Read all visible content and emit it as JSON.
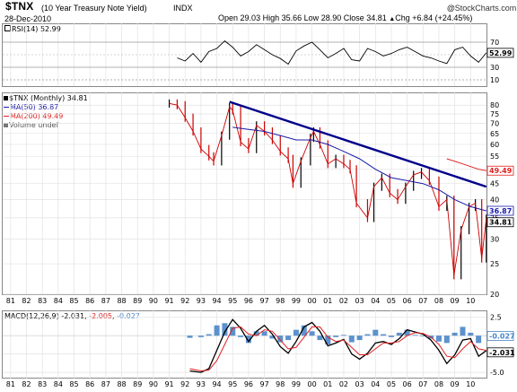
{
  "header": {
    "symbol": "$TNX",
    "description": "(10 Year Treasury Note Yield)",
    "exchange": "INDX",
    "date": "28-Dec-2010",
    "copyright": "@",
    "brand": "StockCharts.com",
    "quote": {
      "open_label": "Open",
      "open": "29.03",
      "high_label": "High",
      "high": "35.66",
      "low_label": "Low",
      "low": "28.90",
      "close_label": "Close",
      "close": "34.81",
      "chg_label": "Chg",
      "chg": "+6.84 (+24.45%)",
      "chg_arrow": "▲"
    }
  },
  "rsi_panel": {
    "legend": "RSI(14) 52.99",
    "value_label": "52.99",
    "ticks": [
      "70",
      "50",
      "30",
      "10"
    ],
    "ylim": [
      0,
      100
    ]
  },
  "price_panel": {
    "legend": [
      {
        "text": "$TNX (Monthly) 34.81",
        "color": "#000000"
      },
      {
        "text": "MA(50) 36.87",
        "color": "#1a1aa8"
      },
      {
        "text": "MA(200) 49.49",
        "color": "#e02020"
      },
      {
        "text": "Volume undef",
        "color": "#555555"
      }
    ],
    "y_ticks": [
      "80",
      "75",
      "70",
      "65",
      "60",
      "55",
      "50",
      "45",
      "40",
      "35",
      "30",
      "25",
      "20"
    ],
    "value_labels": {
      "ma200": "49.49",
      "ma50": "36.87",
      "close": "34.81"
    },
    "colors": {
      "up": "#000000",
      "down": "#cc0000",
      "ma50": "#1a1aa8",
      "ma200": "#e02020",
      "trendline": "#00008b"
    }
  },
  "macd_panel": {
    "legend_prefix": "MACD(12,26,9)",
    "legend_macd": "-2.031",
    "legend_signal": "-2.005",
    "legend_hist": "-0.027",
    "ticks": [
      "2.5",
      "0.0",
      "-2.5",
      "-5.0"
    ],
    "value_labels": {
      "hist": "-0.027",
      "macd": "-2.031"
    },
    "colors": {
      "macd": "#000000",
      "signal": "#e02020",
      "hist": "#4a86c8"
    }
  },
  "x_axis": {
    "labels": [
      "81",
      "82",
      "83",
      "84",
      "85",
      "86",
      "87",
      "88",
      "89",
      "90",
      "91",
      "92",
      "93",
      "94",
      "95",
      "96",
      "97",
      "98",
      "99",
      "00",
      "01",
      "02",
      "03",
      "04",
      "05",
      "06",
      "07",
      "08",
      "09",
      "10"
    ]
  },
  "chart_data": [
    {
      "type": "line",
      "title": "$TNX (10 Year Treasury Note Yield) INDX",
      "subtitle": "",
      "x_axis_type": "year",
      "y_scale": "log",
      "ylim": [
        20,
        85
      ],
      "x": [
        1991.0,
        1991.5,
        1992.0,
        1992.5,
        1993.0,
        1993.5,
        1993.8,
        1994.3,
        1994.8,
        1995.0,
        1995.5,
        1996.0,
        1996.5,
        1997.0,
        1997.5,
        1998.0,
        1998.5,
        1998.8,
        1999.3,
        1999.9,
        2000.1,
        2000.5,
        2001.0,
        2001.5,
        2002.0,
        2002.4,
        2002.8,
        2003.5,
        2003.9,
        2004.4,
        2004.9,
        2005.4,
        2005.9,
        2006.4,
        2006.9,
        2007.4,
        2008.0,
        2008.5,
        2008.95,
        2009.4,
        2009.9,
        2010.3,
        2010.7,
        2010.99
      ],
      "series": [
        {
          "name": "$TNX (Monthly)",
          "values": [
            81,
            80,
            73,
            66,
            58,
            55,
            53,
            64,
            79,
            77,
            61,
            58,
            69,
            66,
            62,
            57,
            54,
            45,
            53,
            63,
            66,
            60,
            52,
            54,
            52,
            50,
            39,
            35,
            44,
            47,
            42,
            40,
            44,
            48,
            49,
            46,
            38,
            40,
            23,
            32,
            38,
            39,
            26,
            34.81
          ]
        },
        {
          "name": "MA(50)",
          "x": [
            1995.0,
            1996.0,
            1997.0,
            1998.0,
            1999.0,
            2000.0,
            2001.0,
            2002.0,
            2003.0,
            2004.0,
            2005.0,
            2006.0,
            2007.0,
            2008.0,
            2009.0,
            2010.0,
            2010.99
          ],
          "values": [
            68,
            67,
            66,
            64,
            62,
            62,
            60,
            57,
            54,
            50,
            47,
            46,
            45,
            43,
            40,
            38,
            36.87
          ]
        },
        {
          "name": "MA(200)",
          "x": [
            2008.5,
            2009.0,
            2009.5,
            2010.0,
            2010.5,
            2010.99
          ],
          "values": [
            54,
            53,
            52,
            51,
            50,
            49.49
          ]
        },
        {
          "name": "",
          "x": [
            1994.8,
            2010.99
          ],
          "values": [
            82,
            44
          ]
        }
      ]
    },
    {
      "type": "line",
      "title": "RSI(14)",
      "ylim": [
        0,
        100
      ],
      "x": [
        1991.5,
        1992,
        1992.5,
        1993,
        1993.5,
        1994,
        1994.5,
        1995,
        1995.5,
        1996,
        1996.5,
        1997,
        1997.5,
        1998,
        1998.5,
        1999,
        1999.5,
        2000,
        2000.5,
        2001,
        2001.5,
        2002,
        2002.5,
        2003,
        2003.5,
        2004,
        2004.5,
        2005,
        2005.5,
        2006,
        2006.5,
        2007,
        2007.5,
        2008,
        2008.5,
        2009,
        2009.5,
        2010,
        2010.5,
        2010.99
      ],
      "series": [
        {
          "name": "RSI(14)",
          "values": [
            45,
            40,
            52,
            38,
            55,
            60,
            72,
            62,
            48,
            55,
            66,
            58,
            50,
            44,
            35,
            56,
            64,
            70,
            58,
            45,
            52,
            60,
            42,
            40,
            60,
            55,
            48,
            52,
            58,
            62,
            55,
            48,
            45,
            40,
            36,
            58,
            62,
            48,
            38,
            52.99
          ]
        }
      ]
    },
    {
      "type": "line",
      "title": "MACD(12,26,9)",
      "ylim": [
        -5.6,
        3.2
      ],
      "x": [
        1992.3,
        1993,
        1993.5,
        1994,
        1994.5,
        1995,
        1995.5,
        1996,
        1996.5,
        1997,
        1997.5,
        1998,
        1998.5,
        1999,
        1999.5,
        2000,
        2000.5,
        2001,
        2001.5,
        2002,
        2002.5,
        2003,
        2003.5,
        2004,
        2004.5,
        2005,
        2005.5,
        2006,
        2006.5,
        2007,
        2007.5,
        2008,
        2008.5,
        2009,
        2009.5,
        2010,
        2010.5,
        2010.99
      ],
      "series": [
        {
          "name": "MACD",
          "values": [
            -4.8,
            -5.0,
            -4.5,
            -2.0,
            0.5,
            2.2,
            1.0,
            -0.8,
            0.6,
            1.4,
            0.2,
            -1.5,
            -2.4,
            -0.8,
            1.2,
            1.8,
            0.6,
            -1.4,
            -1.0,
            -0.5,
            -2.5,
            -3.2,
            -2.4,
            -1.0,
            -0.8,
            -1.2,
            -0.4,
            0.8,
            0.5,
            0.2,
            -0.6,
            -2.0,
            -3.8,
            -2.6,
            -0.6,
            -0.4,
            -2.8,
            -2.031
          ]
        },
        {
          "name": "Signal",
          "values": [
            -4.5,
            -4.8,
            -4.7,
            -3.4,
            -1.2,
            1.0,
            1.2,
            0.2,
            0.0,
            0.8,
            0.6,
            -0.6,
            -1.8,
            -1.6,
            -0.2,
            1.2,
            1.2,
            -0.2,
            -0.8,
            -0.6,
            -1.6,
            -2.6,
            -2.6,
            -1.8,
            -1.0,
            -1.0,
            -0.8,
            0.0,
            0.4,
            0.3,
            -0.2,
            -1.2,
            -2.8,
            -3.0,
            -1.8,
            -0.8,
            -1.8,
            -2.005
          ]
        },
        {
          "name": "Histogram",
          "values": [
            -0.3,
            -0.2,
            0.2,
            1.4,
            1.7,
            1.2,
            -0.2,
            -1.0,
            0.6,
            0.6,
            -0.4,
            -0.9,
            -0.6,
            0.8,
            1.4,
            0.6,
            -0.6,
            -1.2,
            -0.2,
            0.1,
            -0.9,
            -0.6,
            0.2,
            0.8,
            0.2,
            -0.2,
            0.4,
            0.8,
            0.1,
            -0.1,
            -0.4,
            -0.8,
            -1.0,
            0.4,
            1.2,
            0.4,
            -1.0,
            -0.027
          ]
        }
      ]
    }
  ]
}
